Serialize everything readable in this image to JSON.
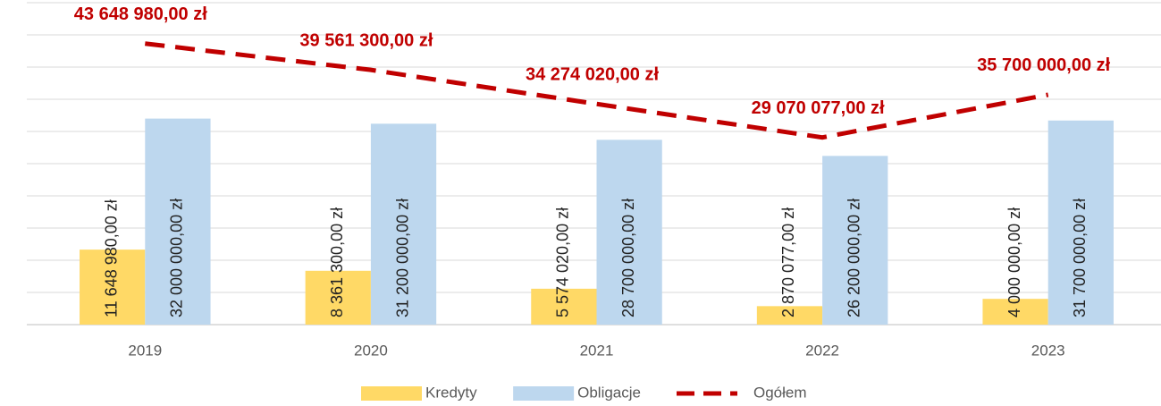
{
  "chart_data": {
    "type": "bar",
    "categories": [
      "2019",
      "2020",
      "2021",
      "2022",
      "2023"
    ],
    "ylim": [
      0,
      50000000
    ],
    "yticks": [
      0,
      5000000,
      10000000,
      15000000,
      20000000,
      25000000,
      30000000,
      35000000,
      40000000,
      45000000,
      50000000
    ],
    "grid": true,
    "legend": "bottom",
    "series": [
      {
        "name": "Kredyty",
        "type": "bar",
        "color": "#ffd966",
        "values": [
          11648980,
          8361300,
          5574020,
          2870077,
          4000000
        ],
        "value_labels": [
          "11 648 980,00 zł",
          "8 361 300,00 zł",
          "5 574 020,00 zł",
          "2 870 077,00 zł",
          "4 000 000,00 zł"
        ]
      },
      {
        "name": "Obligacje",
        "type": "bar",
        "color": "#bdd7ee",
        "values": [
          32000000,
          31200000,
          28700000,
          26200000,
          31700000
        ],
        "value_labels": [
          "32 000 000,00 zł",
          "31 200 000,00 zł",
          "28 700 000,00 zł",
          "26 200 000,00 zł",
          "31 700 000,00 zł"
        ]
      },
      {
        "name": "Ogółem",
        "type": "line",
        "color": "#c00000",
        "dashed": true,
        "values": [
          43648980,
          39561300,
          34274020,
          29070077,
          35700000
        ],
        "value_labels": [
          "43 648 980,00 zł",
          "39 561 300,00 zł",
          "34 274 020,00 zł",
          "29 070 077,00 zł",
          "35 700 000,00 zł"
        ]
      }
    ]
  }
}
